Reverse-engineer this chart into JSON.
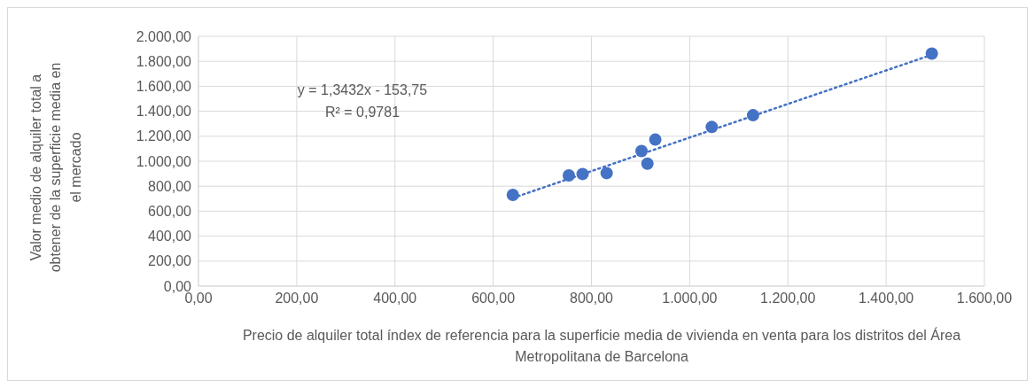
{
  "chart_data": {
    "type": "scatter",
    "xlabel": "Precio de alquiler total  índex de referencia para la superficie media de vivienda en venta para los distritos del Área Metropolitana  de Barcelona",
    "ylabel": "Valor medio de alquiler total a obtener de la superficie media en el mercado",
    "annotations": [
      "y = 1,3432x - 153,75",
      "R² = 0,9781"
    ],
    "series": [
      {
        "color": "#4472c4",
        "marker": "circle",
        "x": [
          640,
          754,
          782,
          831,
          902,
          914,
          930,
          1045,
          1129,
          1493
        ],
        "values": [
          731,
          887,
          898,
          905,
          1082,
          980,
          1173,
          1274,
          1368,
          1862
        ]
      },
      {
        "type": "line",
        "color": "#4472c4",
        "marker": "none",
        "line_style": "dotted",
        "x": [
          640,
          1493
        ],
        "values": [
          706,
          1852
        ]
      }
    ],
    "xlim": [
      0,
      1600
    ],
    "xticks": [
      {
        "value": 0,
        "label": "0,00"
      },
      {
        "value": 200,
        "label": "200,00"
      },
      {
        "value": 400,
        "label": "400,00"
      },
      {
        "value": 600,
        "label": "600,00"
      },
      {
        "value": 800,
        "label": "800,00"
      },
      {
        "value": 1000,
        "label": "1.000,00"
      },
      {
        "value": 1200,
        "label": "1.200,00"
      },
      {
        "value": 1400,
        "label": "1.400,00"
      },
      {
        "value": 1600,
        "label": "1.600,00"
      }
    ],
    "ylim": [
      0,
      2000
    ],
    "yticks": [
      {
        "value": 0,
        "label": "0,00"
      },
      {
        "value": 200,
        "label": "200,00"
      },
      {
        "value": 400,
        "label": "400,00"
      },
      {
        "value": 600,
        "label": "600,00"
      },
      {
        "value": 800,
        "label": "800,00"
      },
      {
        "value": 1000,
        "label": "1.000,00"
      },
      {
        "value": 1200,
        "label": "1.200,00"
      },
      {
        "value": 1400,
        "label": "1.400,00"
      },
      {
        "value": 1600,
        "label": "1.600,00"
      },
      {
        "value": 1800,
        "label": "1.800,00"
      },
      {
        "value": 2000,
        "label": "2.000,00"
      }
    ],
    "grid": true,
    "legend": false
  }
}
